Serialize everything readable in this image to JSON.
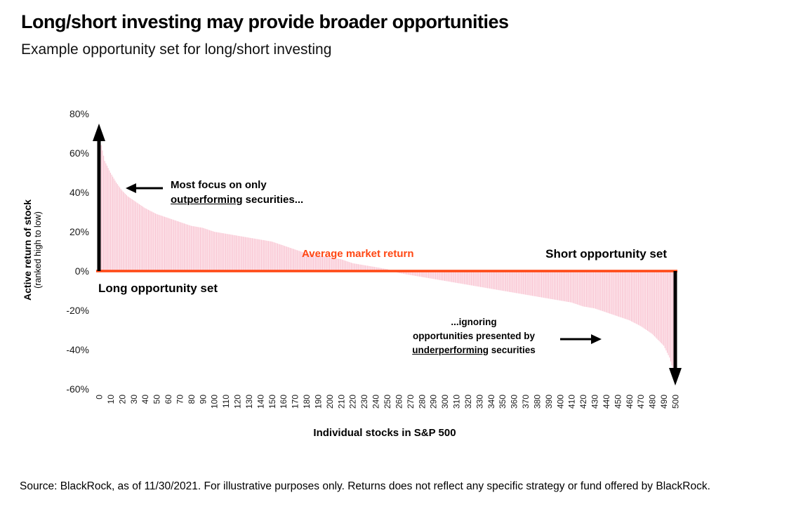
{
  "page": {
    "title": "Long/short investing may provide broader opportunities",
    "subtitle": "Example opportunity set for long/short investing",
    "source": "Source: BlackRock, as of 11/30/2021. For illustrative purposes only. Returns does not reflect any specific strategy or fund offered by BlackRock."
  },
  "colors": {
    "accent_orange": "#ff4713",
    "bar_pink": "#f9c3d1",
    "black": "#000000"
  },
  "axes": {
    "y_title_line1": "Active return of stock",
    "y_title_line2": "(ranked high to low)",
    "x_title": "Individual stocks in S&P 500"
  },
  "annotations": {
    "most_focus": {
      "line1": "Most focus on only",
      "underlined": "outperforming",
      "suffix": " securities..."
    },
    "average_market_return": "Average market return",
    "short_opportunity": "Short opportunity set",
    "long_opportunity": "Long opportunity set",
    "ignoring": {
      "line1": "...ignoring",
      "line2": "opportunities presented by",
      "underlined": "underperforming",
      "suffix": " securities"
    }
  },
  "chart_data": {
    "type": "bar",
    "title": "Example opportunity set for long/short investing",
    "xlabel": "Individual stocks in S&P 500",
    "ylabel": "Active return of stock (ranked high to low)",
    "xlim": [
      0,
      500
    ],
    "ylim": [
      -60,
      80
    ],
    "grid": false,
    "legend": "none",
    "n_bars": 500,
    "bar_color": "#f9c3d1",
    "zero_line_color": "#ff4713",
    "zero_line_value": 0,
    "zero_line_label": "Average market return",
    "y_ticks": [
      "80%",
      "60%",
      "40%",
      "20%",
      "0%",
      "-20%",
      "-40%",
      "-60%"
    ],
    "y_tick_values": [
      80,
      60,
      40,
      20,
      0,
      -20,
      -40,
      -60
    ],
    "x_ticks": [
      0,
      10,
      20,
      30,
      40,
      50,
      60,
      70,
      80,
      90,
      100,
      110,
      120,
      130,
      140,
      150,
      160,
      170,
      180,
      190,
      200,
      210,
      220,
      230,
      240,
      250,
      260,
      270,
      280,
      290,
      300,
      310,
      320,
      330,
      340,
      350,
      360,
      370,
      380,
      390,
      400,
      410,
      420,
      430,
      440,
      450,
      460,
      470,
      480,
      490,
      500
    ],
    "series_description": "Active return (%) of each S&P 500 stock, ranked high to low; values between anchors are linearly interpolated",
    "curve_anchors": [
      [
        0,
        72
      ],
      [
        2,
        64
      ],
      [
        5,
        56
      ],
      [
        10,
        50
      ],
      [
        15,
        45
      ],
      [
        20,
        41
      ],
      [
        25,
        38
      ],
      [
        30,
        36
      ],
      [
        40,
        32
      ],
      [
        50,
        29
      ],
      [
        60,
        27
      ],
      [
        70,
        25
      ],
      [
        80,
        23
      ],
      [
        90,
        22
      ],
      [
        100,
        20
      ],
      [
        110,
        19
      ],
      [
        120,
        18
      ],
      [
        130,
        17
      ],
      [
        140,
        16
      ],
      [
        150,
        15
      ],
      [
        160,
        13
      ],
      [
        170,
        11
      ],
      [
        180,
        9
      ],
      [
        190,
        8
      ],
      [
        200,
        7
      ],
      [
        210,
        6
      ],
      [
        220,
        4
      ],
      [
        230,
        3
      ],
      [
        240,
        2
      ],
      [
        250,
        1
      ],
      [
        255,
        0
      ],
      [
        260,
        -1
      ],
      [
        270,
        -2
      ],
      [
        280,
        -3
      ],
      [
        290,
        -4
      ],
      [
        300,
        -5
      ],
      [
        310,
        -6
      ],
      [
        320,
        -7
      ],
      [
        330,
        -8
      ],
      [
        340,
        -9
      ],
      [
        350,
        -10
      ],
      [
        360,
        -11
      ],
      [
        370,
        -12
      ],
      [
        380,
        -13
      ],
      [
        390,
        -14
      ],
      [
        400,
        -15
      ],
      [
        410,
        -16
      ],
      [
        420,
        -18
      ],
      [
        430,
        -19
      ],
      [
        440,
        -21
      ],
      [
        450,
        -23
      ],
      [
        460,
        -25
      ],
      [
        470,
        -28
      ],
      [
        480,
        -32
      ],
      [
        485,
        -35
      ],
      [
        490,
        -38
      ],
      [
        495,
        -44
      ],
      [
        498,
        -50
      ],
      [
        500,
        -55
      ]
    ]
  }
}
